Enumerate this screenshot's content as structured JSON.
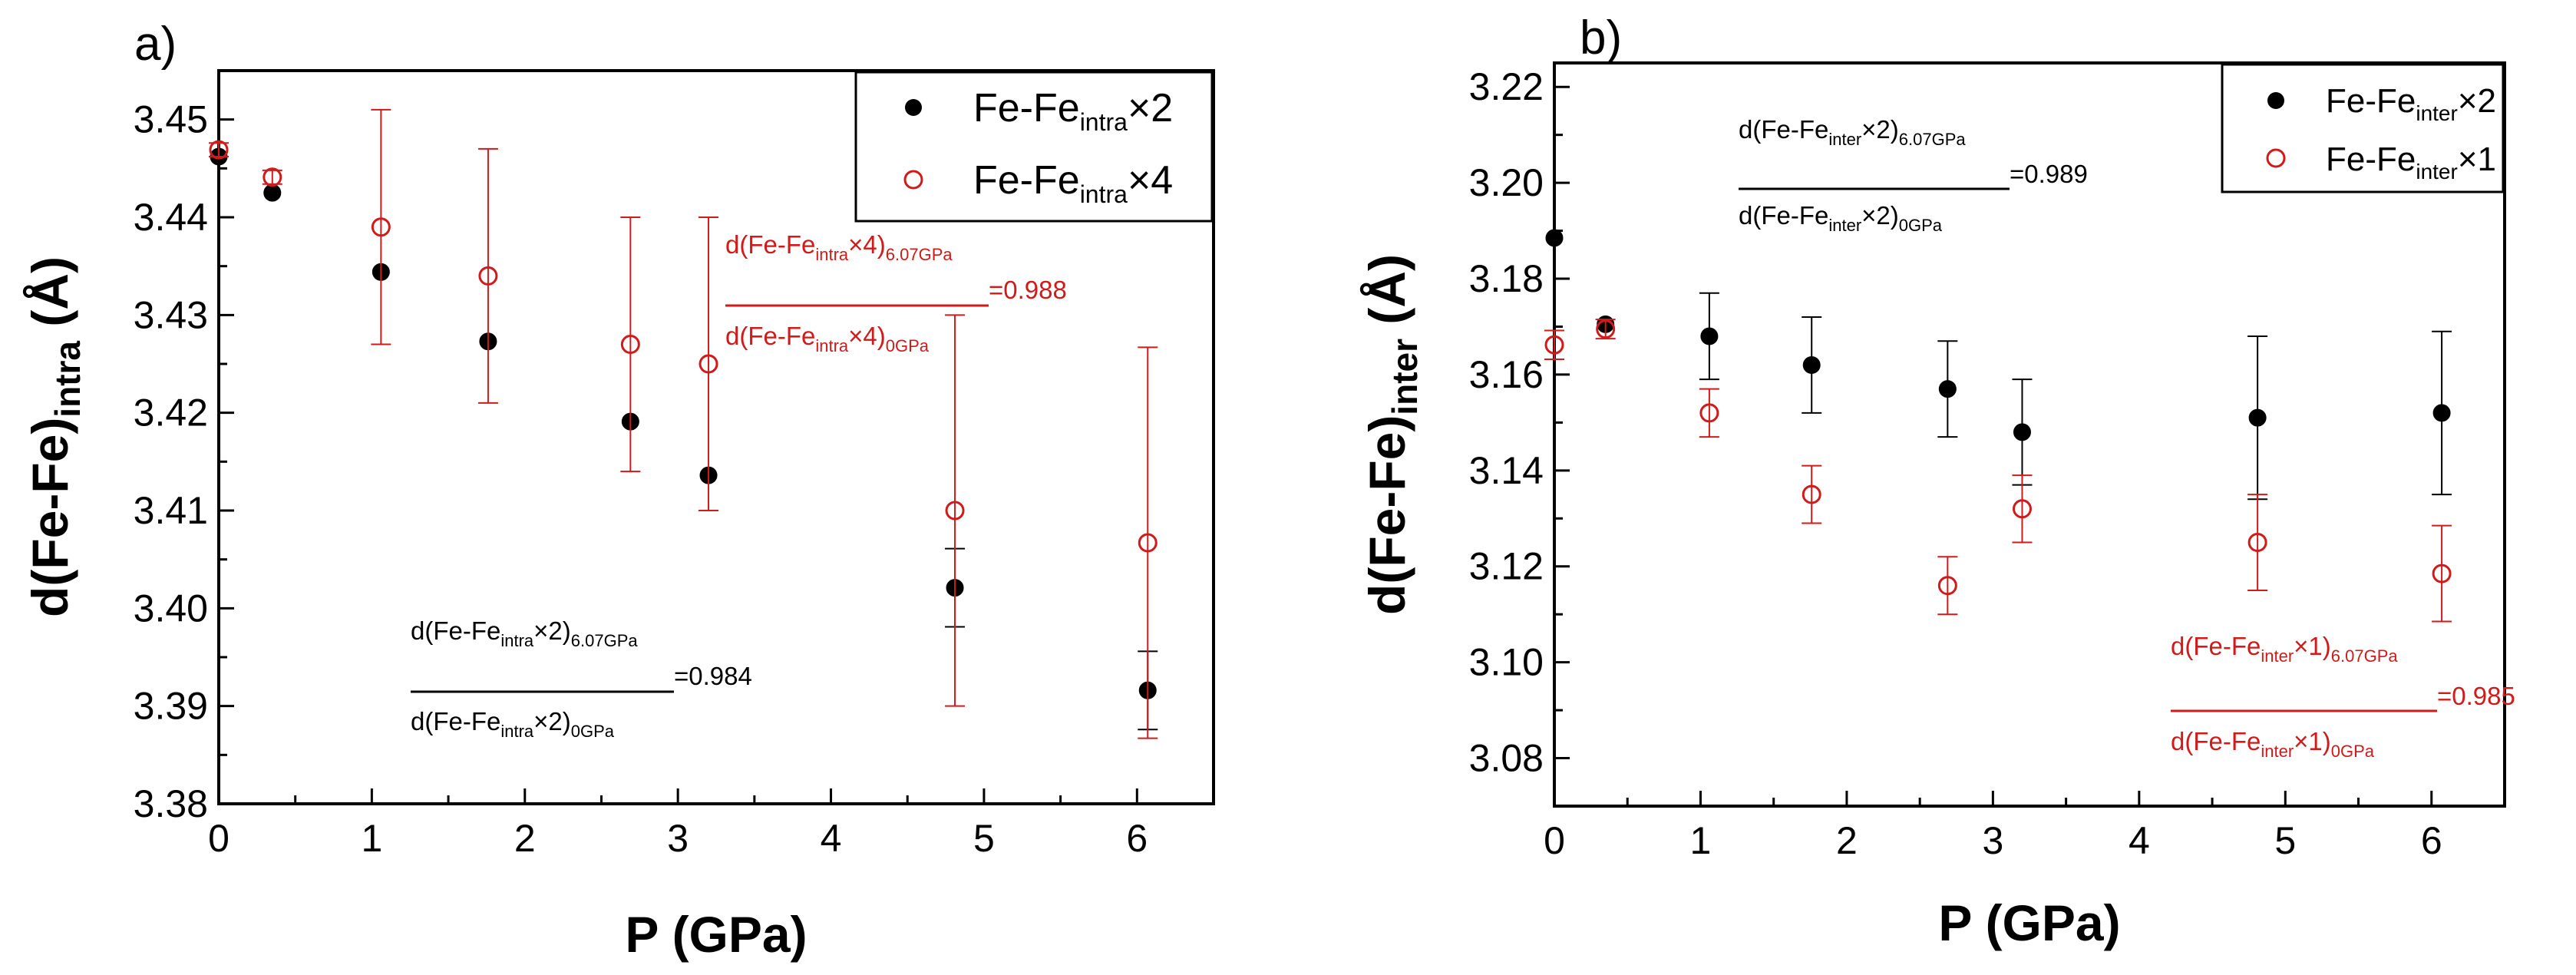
{
  "colors": {
    "series_black": "#000000",
    "series_red": "#d11a1a",
    "axis": "#000000"
  },
  "chart_data": [
    {
      "panel_label": "a)",
      "type": "scatter",
      "xlabel": "P (GPa)",
      "ylabel": {
        "main": "d(Fe-Fe)",
        "sub": "intra",
        "unit": " (Å)"
      },
      "xlim": [
        0,
        6.5
      ],
      "ylim": [
        3.38,
        3.455
      ],
      "xticks": [
        0,
        1,
        2,
        3,
        4,
        5,
        6
      ],
      "xtick_labels": [
        "0",
        "1",
        "2",
        "3",
        "4",
        "5",
        "6"
      ],
      "yticks": [
        3.38,
        3.39,
        3.4,
        3.41,
        3.42,
        3.43,
        3.44,
        3.45
      ],
      "ytick_labels": [
        "3.38",
        "3.39",
        "3.40",
        "3.41",
        "3.42",
        "3.43",
        "3.44",
        "3.45"
      ],
      "legend_position": "top-right",
      "series": [
        {
          "name": {
            "pre": "Fe-Fe",
            "sub": "intra",
            "post": "×2"
          },
          "marker": "filled-circle",
          "color": "#000000",
          "x": [
            0.0,
            0.35,
            1.06,
            1.76,
            2.69,
            3.2,
            4.81,
            6.07
          ],
          "y": [
            3.4462,
            3.4425,
            3.4344,
            3.4273,
            3.4191,
            3.4136,
            3.4021,
            3.3916
          ],
          "err": [
            0,
            0,
            0,
            0,
            0,
            0,
            0.004,
            0.004
          ]
        },
        {
          "name": {
            "pre": "Fe-Fe",
            "sub": "intra",
            "post": "×4"
          },
          "marker": "open-circle",
          "color": "#d11a1a",
          "x": [
            0.0,
            0.35,
            1.06,
            1.76,
            2.69,
            3.2,
            4.81,
            6.07
          ],
          "y": [
            3.4469,
            3.4441,
            3.439,
            3.434,
            3.427,
            3.425,
            3.41,
            3.4067
          ],
          "err": [
            0.0007,
            0.0007,
            0.012,
            0.013,
            0.013,
            0.015,
            0.02,
            0.02
          ]
        }
      ],
      "annotations": [
        {
          "color": "#000000",
          "num_pre": "d(Fe-Fe",
          "num_sub1": "intra",
          "num_mid": "×2)",
          "num_sub2": "6.07GPa",
          "den_pre": "d(Fe-Fe",
          "den_sub1": "intra",
          "den_mid": "×2)",
          "den_sub2": "0GPa",
          "result": "=0.984"
        },
        {
          "color": "#d11a1a",
          "num_pre": "d(Fe-Fe",
          "num_sub1": "intra",
          "num_mid": "×4)",
          "num_sub2": "6.07GPa",
          "den_pre": "d(Fe-Fe",
          "den_sub1": "intra",
          "den_mid": "×4)",
          "den_sub2": "0GPa",
          "result": "=0.988"
        }
      ]
    },
    {
      "panel_label": "b)",
      "type": "scatter",
      "xlabel": "P (GPa)",
      "ylabel": {
        "main": "d(Fe-Fe)",
        "sub": "inter",
        "unit": " (Å)"
      },
      "xlim": [
        0,
        6.5
      ],
      "ylim": [
        3.07,
        3.225
      ],
      "xticks": [
        0,
        1,
        2,
        3,
        4,
        5,
        6
      ],
      "xtick_labels": [
        "0",
        "1",
        "2",
        "3",
        "4",
        "5",
        "6"
      ],
      "yticks": [
        3.08,
        3.1,
        3.12,
        3.14,
        3.16,
        3.18,
        3.2,
        3.22
      ],
      "ytick_labels": [
        "3.08",
        "3.10",
        "3.12",
        "3.14",
        "3.16",
        "3.18",
        "3.20",
        "3.22"
      ],
      "legend_position": "top-right",
      "series": [
        {
          "name": {
            "pre": "Fe-Fe",
            "sub": "inter",
            "post": "×2"
          },
          "marker": "filled-circle",
          "color": "#000000",
          "x": [
            0.0,
            0.35,
            1.06,
            1.76,
            2.69,
            3.2,
            4.81,
            6.07
          ],
          "y": [
            3.1885,
            3.1705,
            3.168,
            3.162,
            3.157,
            3.148,
            3.151,
            3.152
          ],
          "err": [
            0,
            0,
            0.009,
            0.01,
            0.01,
            0.011,
            0.017,
            0.017
          ]
        },
        {
          "name": {
            "pre": "Fe-Fe",
            "sub": "inter",
            "post": "×1"
          },
          "marker": "open-circle",
          "color": "#d11a1a",
          "x": [
            0.0,
            0.35,
            1.06,
            1.76,
            2.69,
            3.2,
            4.81,
            6.07
          ],
          "y": [
            3.1662,
            3.1695,
            3.152,
            3.135,
            3.116,
            3.132,
            3.125,
            3.1185
          ],
          "err": [
            0.003,
            0.002,
            0.005,
            0.006,
            0.006,
            0.007,
            0.01,
            0.01
          ]
        }
      ],
      "annotations": [
        {
          "color": "#000000",
          "num_pre": "d(Fe-Fe",
          "num_sub1": "inter",
          "num_mid": "×2)",
          "num_sub2": "6.07GPa",
          "den_pre": "d(Fe-Fe",
          "den_sub1": "inter",
          "den_mid": "×2)",
          "den_sub2": "0GPa",
          "result": "=0.989"
        },
        {
          "color": "#d11a1a",
          "num_pre": "d(Fe-Fe",
          "num_sub1": "inter",
          "num_mid": "×1)",
          "num_sub2": "6.07GPa",
          "den_pre": "d(Fe-Fe",
          "den_sub1": "inter",
          "den_mid": "×1)",
          "den_sub2": "0GPa",
          "result": "=0.985"
        }
      ]
    }
  ]
}
